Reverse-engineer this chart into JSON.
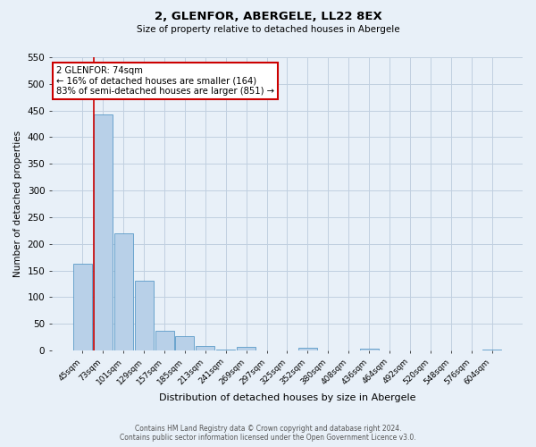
{
  "title": "2, GLENFOR, ABERGELE, LL22 8EX",
  "subtitle": "Size of property relative to detached houses in Abergele",
  "xlabel": "Distribution of detached houses by size in Abergele",
  "ylabel": "Number of detached properties",
  "bar_labels": [
    "45sqm",
    "73sqm",
    "101sqm",
    "129sqm",
    "157sqm",
    "185sqm",
    "213sqm",
    "241sqm",
    "269sqm",
    "297sqm",
    "325sqm",
    "352sqm",
    "380sqm",
    "408sqm",
    "436sqm",
    "464sqm",
    "492sqm",
    "520sqm",
    "548sqm",
    "576sqm",
    "604sqm"
  ],
  "bar_values": [
    163,
    443,
    220,
    130,
    37,
    26,
    9,
    2,
    6,
    0,
    0,
    5,
    0,
    0,
    4,
    0,
    0,
    0,
    0,
    0,
    2
  ],
  "bar_color": "#b8d0e8",
  "bar_edge_color": "#5a9ac8",
  "grid_color": "#c0cfe0",
  "background_color": "#e8f0f8",
  "vline_color": "#cc0000",
  "annotation_text": "2 GLENFOR: 74sqm\n← 16% of detached houses are smaller (164)\n83% of semi-detached houses are larger (851) →",
  "annotation_box_color": "#ffffff",
  "annotation_box_edge": "#cc0000",
  "ylim": [
    0,
    550
  ],
  "yticks": [
    0,
    50,
    100,
    150,
    200,
    250,
    300,
    350,
    400,
    450,
    500,
    550
  ],
  "footer_line1": "Contains HM Land Registry data © Crown copyright and database right 2024.",
  "footer_line2": "Contains public sector information licensed under the Open Government Licence v3.0."
}
